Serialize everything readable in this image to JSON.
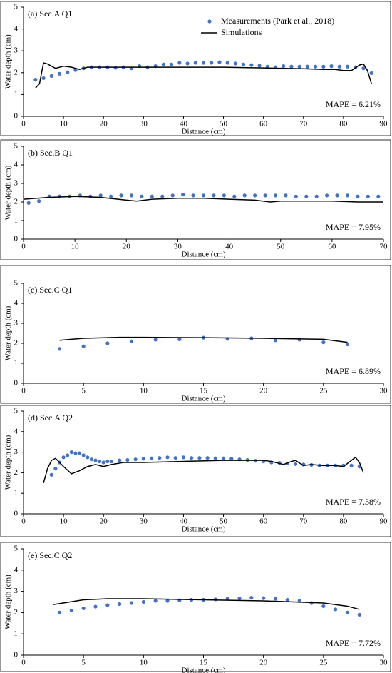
{
  "chart_data": [
    {
      "type": "scatter",
      "title": "(a) Sec.A Q1",
      "x_label": "Distance (cm)",
      "y_label": "Water depth (cm)",
      "annotation": "MAPE = 6.21%",
      "xlim": [
        0,
        90
      ],
      "xticks": [
        0,
        10,
        20,
        30,
        40,
        50,
        60,
        70,
        80,
        90
      ],
      "ylim": [
        0,
        5
      ],
      "yticks": [
        0,
        1,
        2,
        3,
        4,
        5
      ],
      "series": [
        {
          "name": "Measurements (Park et al., 2018)",
          "color": "#4472c4",
          "mode": "markers",
          "x": [
            3,
            5,
            7,
            9,
            11,
            13,
            15,
            17,
            19,
            21,
            23,
            25,
            27,
            29,
            31,
            33,
            35,
            37,
            39,
            41,
            43,
            45,
            47,
            49,
            51,
            53,
            55,
            57,
            59,
            61,
            63,
            65,
            67,
            69,
            71,
            73,
            75,
            77,
            79,
            81,
            83,
            85,
            87
          ],
          "values": [
            1.68,
            1.75,
            1.85,
            1.95,
            2.02,
            2.12,
            2.2,
            2.25,
            2.25,
            2.25,
            2.22,
            2.25,
            2.2,
            2.3,
            2.25,
            2.3,
            2.38,
            2.38,
            2.45,
            2.42,
            2.45,
            2.45,
            2.45,
            2.48,
            2.45,
            2.42,
            2.38,
            2.35,
            2.32,
            2.28,
            2.25,
            2.3,
            2.28,
            2.28,
            2.28,
            2.28,
            2.28,
            2.3,
            2.28,
            2.28,
            2.25,
            2.2,
            1.98
          ]
        },
        {
          "name": "Simulations",
          "color": "#000000",
          "mode": "line",
          "x": [
            3,
            4,
            5,
            6,
            8,
            10,
            12,
            14,
            16,
            20,
            30,
            40,
            50,
            60,
            70,
            75,
            78,
            80,
            82,
            84,
            85,
            86,
            87
          ],
          "values": [
            1.3,
            1.5,
            2.45,
            2.4,
            2.2,
            2.3,
            2.25,
            2.15,
            2.25,
            2.25,
            2.25,
            2.25,
            2.25,
            2.22,
            2.18,
            2.15,
            2.15,
            2.1,
            2.1,
            2.35,
            2.4,
            2.1,
            1.5
          ]
        }
      ]
    },
    {
      "type": "scatter",
      "title": "(b) Sec.B Q1",
      "x_label": "Distance (cm)",
      "y_label": "Water depth (cm)",
      "annotation": "MAPE = 7.95%",
      "xlim": [
        0,
        70
      ],
      "xticks": [
        0,
        10,
        20,
        30,
        40,
        50,
        60,
        70
      ],
      "ylim": [
        0,
        5
      ],
      "yticks": [
        0,
        1,
        2,
        3,
        4,
        5
      ],
      "series": [
        {
          "color": "#4472c4",
          "mode": "markers",
          "x": [
            1,
            3,
            5,
            7,
            9,
            11,
            13,
            15,
            17,
            19,
            21,
            23,
            25,
            27,
            29,
            31,
            33,
            35,
            37,
            39,
            41,
            43,
            45,
            47,
            49,
            51,
            53,
            55,
            57,
            59,
            61,
            63,
            65,
            67,
            69
          ],
          "values": [
            1.95,
            2.05,
            2.3,
            2.3,
            2.3,
            2.35,
            2.3,
            2.35,
            2.3,
            2.35,
            2.35,
            2.3,
            2.3,
            2.3,
            2.35,
            2.4,
            2.35,
            2.35,
            2.35,
            2.35,
            2.3,
            2.35,
            2.35,
            2.35,
            2.35,
            2.35,
            2.3,
            2.3,
            2.3,
            2.35,
            2.35,
            2.35,
            2.3,
            2.3,
            2.3
          ]
        },
        {
          "color": "#000000",
          "mode": "line",
          "x": [
            0,
            5,
            10,
            15,
            20,
            22,
            25,
            30,
            35,
            40,
            45,
            48,
            50,
            55,
            60,
            65,
            70
          ],
          "values": [
            2.15,
            2.25,
            2.3,
            2.25,
            2.1,
            2.05,
            2.15,
            2.2,
            2.2,
            2.15,
            2.1,
            2.0,
            2.05,
            2.05,
            2.05,
            2.0,
            2.0
          ]
        }
      ]
    },
    {
      "type": "scatter",
      "title": "(c) Sec.C Q1",
      "x_label": "Distance (cm)",
      "y_label": "Water depth (cm)",
      "annotation": "MAPE = 6.89%",
      "xlim": [
        0,
        30
      ],
      "xticks": [
        0,
        5,
        10,
        15,
        20,
        25,
        30
      ],
      "ylim": [
        0,
        5
      ],
      "yticks": [
        0,
        1,
        2,
        3,
        4,
        5
      ],
      "series": [
        {
          "color": "#4472c4",
          "mode": "markers",
          "x": [
            3,
            5,
            7,
            9,
            11,
            13,
            15,
            17,
            19,
            21,
            23,
            25,
            27
          ],
          "values": [
            1.72,
            1.85,
            2.0,
            2.1,
            2.18,
            2.2,
            2.28,
            2.22,
            2.25,
            2.15,
            2.18,
            2.05,
            1.95
          ]
        },
        {
          "color": "#000000",
          "mode": "line",
          "x": [
            3,
            5,
            8,
            10,
            15,
            20,
            25,
            27
          ],
          "values": [
            2.15,
            2.25,
            2.3,
            2.3,
            2.28,
            2.25,
            2.2,
            2.05
          ]
        }
      ]
    },
    {
      "type": "scatter",
      "title": "(d) Sec.A Q2",
      "x_label": "Distance (cm)",
      "y_label": "Water depth (cm)",
      "annotation": "MAPE = 7.38%",
      "xlim": [
        0,
        90
      ],
      "xticks": [
        0,
        10,
        20,
        30,
        40,
        50,
        60,
        70,
        80,
        90
      ],
      "ylim": [
        0,
        5
      ],
      "yticks": [
        0,
        1,
        2,
        3,
        4,
        5
      ],
      "series": [
        {
          "color": "#4472c4",
          "mode": "markers",
          "x": [
            7,
            8,
            9,
            10,
            11,
            12,
            13,
            14,
            15,
            16,
            17,
            18,
            19,
            20,
            21,
            22,
            24,
            26,
            28,
            30,
            32,
            34,
            36,
            38,
            40,
            42,
            44,
            46,
            48,
            50,
            52,
            54,
            56,
            58,
            60,
            62,
            64,
            66,
            68,
            70,
            72,
            74,
            76,
            78,
            80,
            82,
            84
          ],
          "values": [
            1.9,
            2.2,
            2.5,
            2.75,
            2.85,
            3.0,
            2.95,
            2.95,
            2.85,
            2.75,
            2.65,
            2.6,
            2.55,
            2.5,
            2.55,
            2.55,
            2.6,
            2.62,
            2.65,
            2.68,
            2.7,
            2.72,
            2.75,
            2.72,
            2.75,
            2.72,
            2.72,
            2.72,
            2.7,
            2.7,
            2.68,
            2.65,
            2.62,
            2.58,
            2.55,
            2.5,
            2.48,
            2.45,
            2.42,
            2.4,
            2.38,
            2.35,
            2.35,
            2.35,
            2.35,
            2.35,
            2.3
          ]
        },
        {
          "color": "#000000",
          "mode": "line",
          "x": [
            5,
            6,
            7,
            8,
            10,
            12,
            14,
            16,
            18,
            20,
            22,
            25,
            30,
            40,
            50,
            55,
            60,
            62,
            65,
            67,
            68,
            70,
            72,
            75,
            78,
            80,
            82,
            83,
            84,
            85
          ],
          "values": [
            1.5,
            2.2,
            2.6,
            2.7,
            2.3,
            1.95,
            2.1,
            2.3,
            2.4,
            2.3,
            2.4,
            2.5,
            2.5,
            2.55,
            2.6,
            2.6,
            2.6,
            2.55,
            2.4,
            2.55,
            2.6,
            2.35,
            2.4,
            2.35,
            2.35,
            2.3,
            2.6,
            2.75,
            2.5,
            2.0
          ]
        }
      ]
    },
    {
      "type": "scatter",
      "title": "(e) Sec.C Q2",
      "x_label": "Distance (cm)",
      "y_label": "Water depth (cm)",
      "annotation": "MAPE = 7.72%",
      "xlim": [
        0,
        30
      ],
      "xticks": [
        0,
        5,
        10,
        15,
        20,
        25,
        30
      ],
      "ylim": [
        0,
        5
      ],
      "yticks": [
        0,
        1,
        2,
        3,
        4,
        5
      ],
      "series": [
        {
          "color": "#4472c4",
          "mode": "markers",
          "x": [
            3,
            4,
            5,
            6,
            7,
            8,
            9,
            10,
            11,
            12,
            13,
            14,
            15,
            16,
            17,
            18,
            19,
            20,
            21,
            22,
            23,
            24,
            25,
            26,
            27,
            28
          ],
          "values": [
            2.0,
            2.1,
            2.2,
            2.28,
            2.35,
            2.4,
            2.45,
            2.5,
            2.55,
            2.55,
            2.58,
            2.6,
            2.6,
            2.62,
            2.65,
            2.67,
            2.7,
            2.68,
            2.65,
            2.6,
            2.55,
            2.45,
            2.3,
            2.15,
            2.0,
            1.9
          ]
        },
        {
          "color": "#000000",
          "mode": "line",
          "x": [
            2.5,
            5,
            7,
            10,
            15,
            20,
            25,
            27,
            28
          ],
          "values": [
            2.38,
            2.6,
            2.65,
            2.65,
            2.6,
            2.55,
            2.45,
            2.3,
            2.15
          ]
        }
      ]
    }
  ]
}
